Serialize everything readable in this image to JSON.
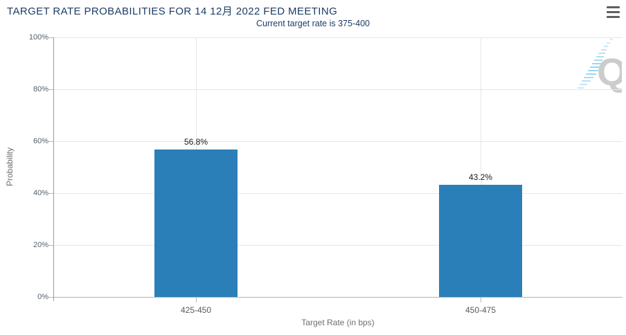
{
  "header": {
    "title": "TARGET RATE PROBABILITIES FOR 14 12月 2022 FED MEETING",
    "subtitle": "Current target rate is 375-400",
    "menu_icon": "hamburger-menu-icon"
  },
  "watermark": {
    "letter": "Q"
  },
  "colors": {
    "title": "#1c3c63",
    "bar": "#2b7fb8",
    "gridline": "#e6e6e6",
    "y_axis_line": "#9a9a9a",
    "x_axis_line": "#b3b3b3",
    "tick_label": "#535f6b",
    "watermark_gray": "#cccccc",
    "watermark_blue": "#8fd0ef"
  },
  "chart_data": {
    "type": "bar",
    "title": "TARGET RATE PROBABILITIES FOR 14 12月 2022 FED MEETING",
    "subtitle": "Current target rate is 375-400",
    "categories": [
      "425-450",
      "450-475"
    ],
    "values": [
      56.8,
      43.2
    ],
    "data_labels": [
      "56.8%",
      "43.2%"
    ],
    "xlabel": "Target Rate (in bps)",
    "ylabel": "Probability",
    "ylim": [
      0,
      100
    ],
    "ytick_labels": [
      "0%",
      "20%",
      "40%",
      "60%",
      "80%",
      "100%"
    ],
    "grid": true,
    "legend": false,
    "bar_color": "#2b7fb8"
  }
}
